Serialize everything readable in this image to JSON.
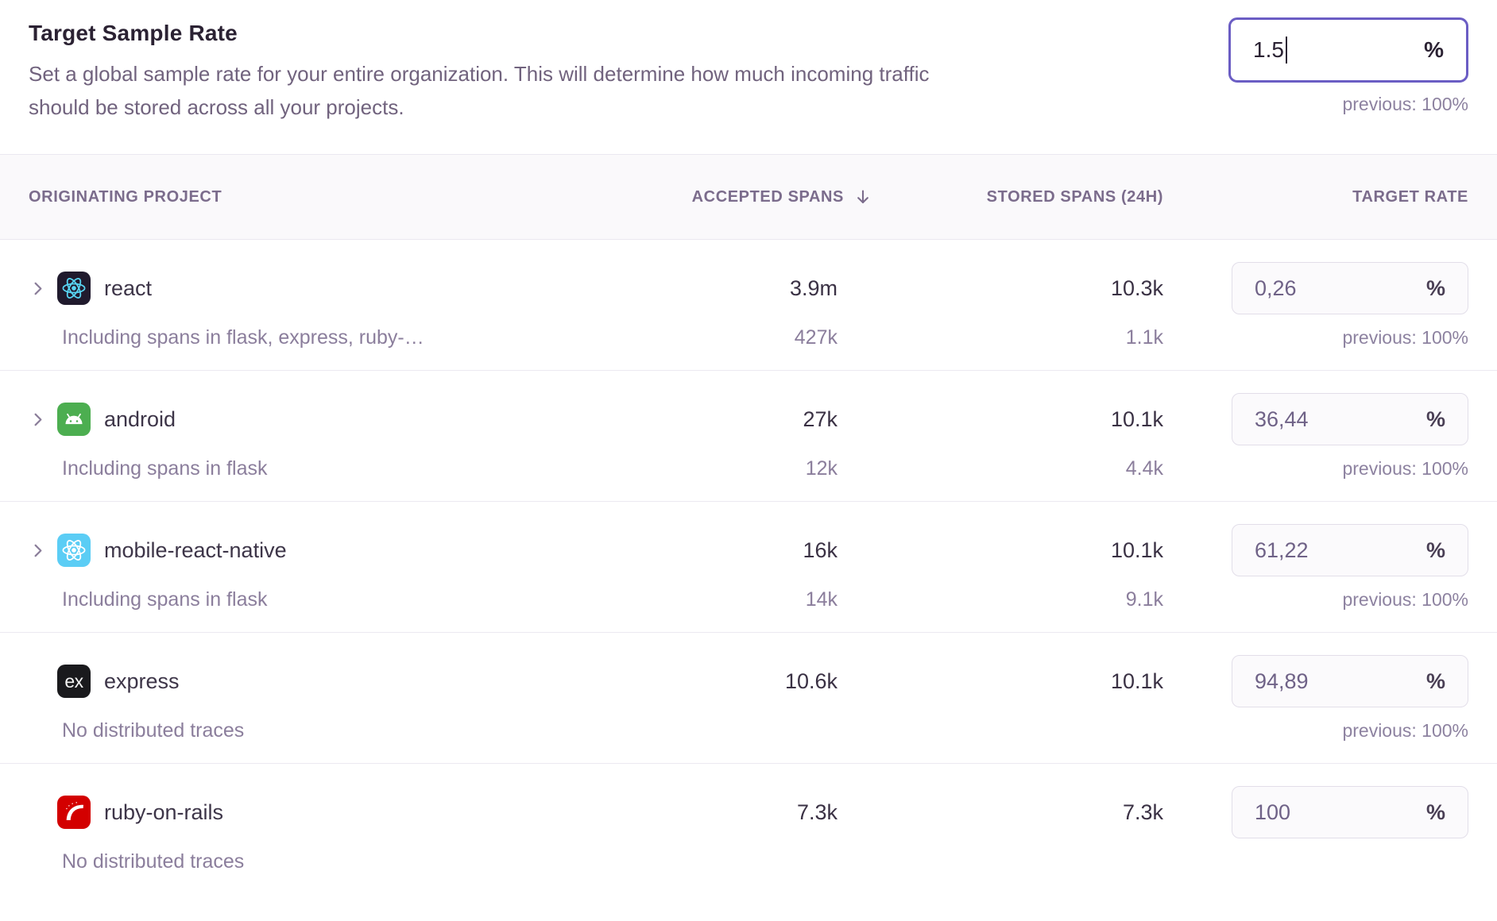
{
  "panel": {
    "title": "Target Sample Rate",
    "description": "Set a global sample rate for your entire organization. This will determine how much incoming traffic should be stored across all your projects.",
    "rate_input": {
      "value": "1.5",
      "unit": "%"
    },
    "previous_label": "previous: 100%"
  },
  "table": {
    "headers": {
      "project": "ORIGINATING PROJECT",
      "accepted": "ACCEPTED SPANS",
      "stored": "STORED SPANS (24H)",
      "target": "TARGET RATE"
    },
    "rows": [
      {
        "project": "react",
        "icon": "react-icon",
        "icon_bg": "#201a2d",
        "expandable": true,
        "accepted": "3.9m",
        "stored": "10.3k",
        "rate": "0,26",
        "unit": "%",
        "previous": "previous: 100%",
        "sub_label": "Including spans in flask, express, ruby-…",
        "sub_accepted": "427k",
        "sub_stored": "1.1k"
      },
      {
        "project": "android",
        "icon": "android-icon",
        "icon_bg": "#4cae50",
        "expandable": true,
        "accepted": "27k",
        "stored": "10.1k",
        "rate": "36,44",
        "unit": "%",
        "previous": "previous: 100%",
        "sub_label": "Including spans in flask",
        "sub_accepted": "12k",
        "sub_stored": "4.4k"
      },
      {
        "project": "mobile-react-native",
        "icon": "react-native-icon",
        "icon_bg": "#5bcdf5",
        "expandable": true,
        "accepted": "16k",
        "stored": "10.1k",
        "rate": "61,22",
        "unit": "%",
        "previous": "previous: 100%",
        "sub_label": "Including spans in flask",
        "sub_accepted": "14k",
        "sub_stored": "9.1k"
      },
      {
        "project": "express",
        "icon": "express-icon",
        "icon_bg": "#1a1a1d",
        "expandable": false,
        "accepted": "10.6k",
        "stored": "10.1k",
        "rate": "94,89",
        "unit": "%",
        "previous": "previous: 100%",
        "sub_label": "No distributed traces"
      },
      {
        "project": "ruby-on-rails",
        "icon": "rails-icon",
        "icon_bg": "#d30000",
        "expandable": false,
        "accepted": "7.3k",
        "stored": "7.3k",
        "rate": "100",
        "unit": "%",
        "sub_label": "No distributed traces"
      }
    ]
  },
  "colors": {
    "accent_purple": "#6b5dc4",
    "react_logo": "#58d5f3"
  }
}
